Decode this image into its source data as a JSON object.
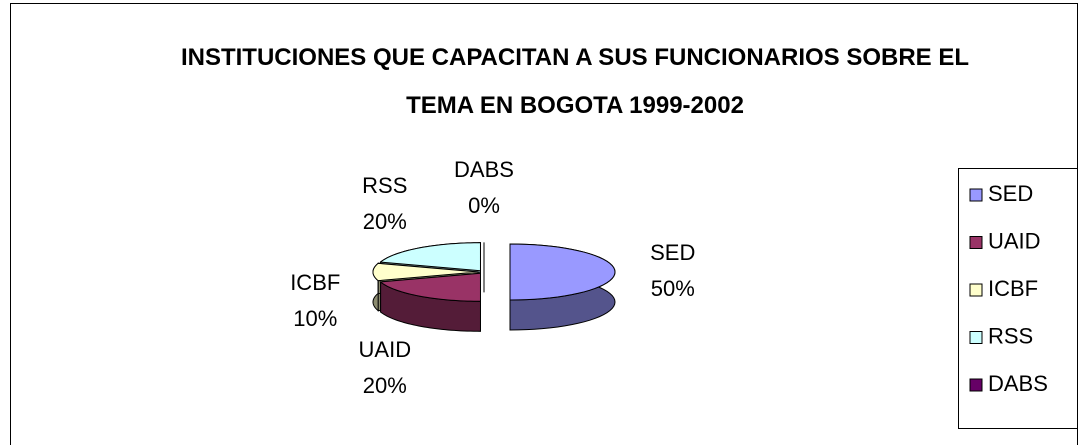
{
  "chart_data": {
    "type": "pie",
    "title": "INSTITUCIONES QUE CAPACITAN A SUS FUNCIONARIOS SOBRE EL TEMA EN BOGOTA 1999-2002",
    "categories": [
      "SED",
      "UAID",
      "ICBF",
      "RSS",
      "DABS"
    ],
    "values": [
      50,
      20,
      10,
      20,
      0
    ],
    "value_labels": [
      "50%",
      "20%",
      "10%",
      "20%",
      "0%"
    ],
    "colors": [
      "#9999ff",
      "#993366",
      "#ffffcc",
      "#ccffff",
      "#660066"
    ],
    "legend": "right"
  }
}
